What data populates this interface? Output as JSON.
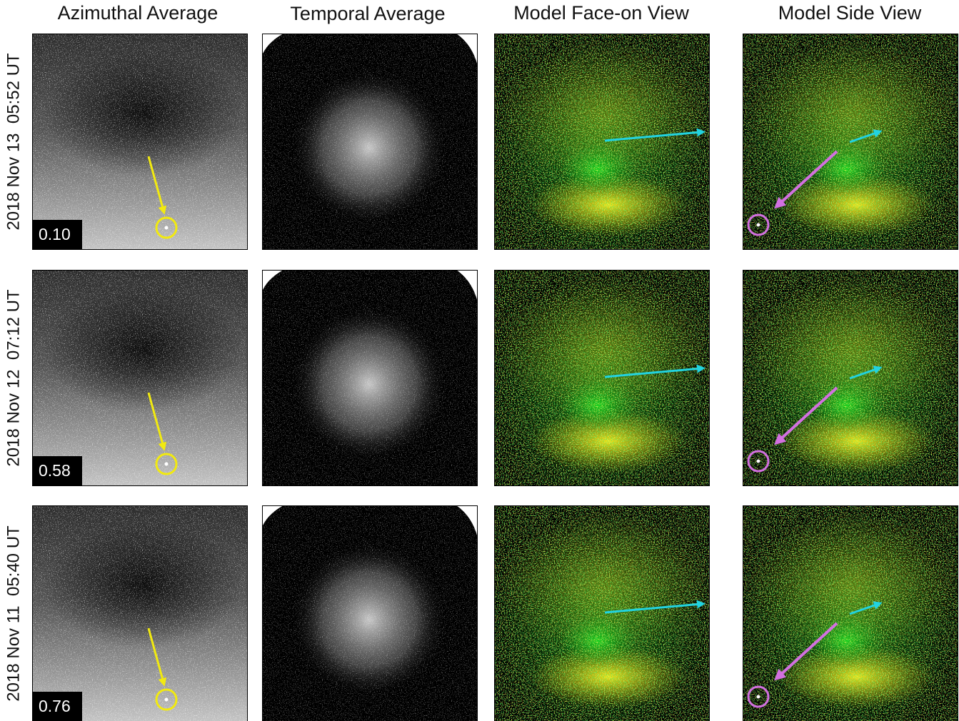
{
  "headers": [
    "Azimuthal Average",
    "Temporal Average",
    "Model Face-on View",
    "Model Side View"
  ],
  "rows": [
    {
      "label": "2018 Nov 13  05:52 UT",
      "value": "0.10"
    },
    {
      "label": "2018 Nov 12  07:12 UT",
      "value": "0.58"
    },
    {
      "label": "2018 Nov 11  05:40 UT",
      "value": "0.76"
    }
  ]
}
